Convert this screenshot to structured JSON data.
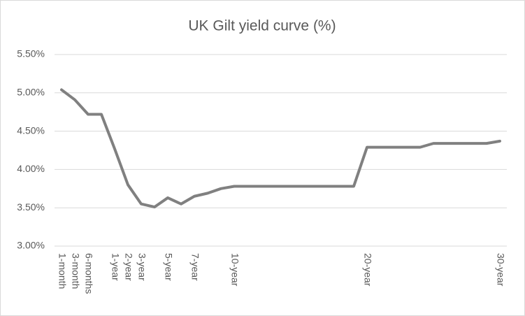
{
  "chart_data": {
    "type": "line",
    "title": "UK Gilt yield curve (%)",
    "categories": [
      "1-month",
      "3-month",
      "6-months",
      null,
      "1-year",
      "2-year",
      "3-year",
      null,
      "5-year",
      null,
      "7-year",
      null,
      null,
      "10-year",
      null,
      null,
      null,
      null,
      null,
      null,
      null,
      null,
      null,
      "20-year",
      null,
      null,
      null,
      null,
      null,
      null,
      null,
      null,
      null,
      "30-year"
    ],
    "series": [
      {
        "name": "UK Gilt yield",
        "color": "#808080",
        "values": [
          5.04,
          4.91,
          4.72,
          4.72,
          4.27,
          3.8,
          3.55,
          3.51,
          3.63,
          3.55,
          3.65,
          3.69,
          3.75,
          3.78,
          3.78,
          3.78,
          3.78,
          3.78,
          3.78,
          3.78,
          3.78,
          3.78,
          3.78,
          4.29,
          4.29,
          4.29,
          4.29,
          4.29,
          4.34,
          4.34,
          4.34,
          4.34,
          4.34,
          4.37
        ]
      }
    ],
    "ylim": [
      3,
      5.5
    ],
    "yticks": [
      {
        "value": 3,
        "label": "3.00%"
      },
      {
        "value": 3.5,
        "label": "3.50%"
      },
      {
        "value": 4,
        "label": "4.00%"
      },
      {
        "value": 4.5,
        "label": "4.50%"
      },
      {
        "value": 5,
        "label": "5.00%"
      },
      {
        "value": 5.5,
        "label": "5.50%"
      }
    ],
    "grid": true
  }
}
